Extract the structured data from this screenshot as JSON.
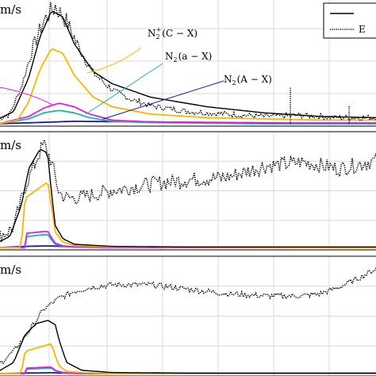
{
  "figure": {
    "kind": "stacked time-series emission panels (cropped)"
  },
  "legend": {
    "placement": "top-right",
    "entries": [
      {
        "label": "",
        "style": "solid"
      },
      {
        "label": "E",
        "style": "dotted"
      }
    ]
  },
  "colors": {
    "total": "#000000",
    "experiment": "#000000",
    "C_X": "#f5b800",
    "a_X": "#20b2aa",
    "A_X": "#1a1a9c",
    "magenta": "#e020e0",
    "grid": "#d9d9d9"
  },
  "chart_data": [
    {
      "type": "line",
      "panel_label": "m/s",
      "grid": true,
      "xlim": [
        0,
        1
      ],
      "ylim": [
        0,
        1
      ],
      "annotations": [
        {
          "text_base": "N",
          "sub": "2",
          "sup": "+",
          "rest": "(C − X)",
          "series": "C-X"
        },
        {
          "text_base": "N",
          "sub": "2",
          "sup": "",
          "rest": "(a − X)",
          "series": "a-X"
        },
        {
          "text_base": "N",
          "sub": "2",
          "sup": "",
          "rest": "(A − X)",
          "series": "A-X"
        }
      ],
      "series": [
        {
          "key": "total",
          "x": [
            0,
            0.04,
            0.08,
            0.11,
            0.14,
            0.17,
            0.2,
            0.25,
            0.3,
            0.4,
            0.55,
            0.7,
            0.85,
            1.0
          ],
          "values": [
            0.04,
            0.1,
            0.38,
            0.72,
            0.93,
            0.88,
            0.66,
            0.43,
            0.33,
            0.22,
            0.14,
            0.09,
            0.06,
            0.05
          ]
        },
        {
          "key": "experiment",
          "x": [
            0,
            0.03,
            0.06,
            0.09,
            0.12,
            0.15,
            0.18,
            0.21,
            0.25,
            0.3,
            0.35,
            0.4,
            0.5,
            0.6,
            0.7,
            0.8,
            0.9,
            1.0
          ],
          "values": [
            0.04,
            0.08,
            0.3,
            0.62,
            0.85,
            0.97,
            0.84,
            0.64,
            0.42,
            0.28,
            0.2,
            0.15,
            0.1,
            0.08,
            0.06,
            0.07,
            0.05,
            0.05
          ]
        },
        {
          "key": "C_X",
          "name": "N2+(C − X)",
          "x": [
            0,
            0.05,
            0.08,
            0.11,
            0.14,
            0.17,
            0.2,
            0.25,
            0.3,
            0.4,
            0.55,
            0.7,
            0.85,
            1.0
          ],
          "values": [
            0.0,
            0.03,
            0.18,
            0.45,
            0.62,
            0.58,
            0.4,
            0.22,
            0.14,
            0.08,
            0.05,
            0.04,
            0.03,
            0.03
          ]
        },
        {
          "key": "magenta",
          "x": [
            0,
            0.08,
            0.12,
            0.16,
            0.2,
            0.24,
            0.3,
            0.4,
            0.55,
            0.7,
            1.0
          ],
          "values": [
            0.0,
            0.06,
            0.13,
            0.17,
            0.14,
            0.08,
            0.03,
            0.015,
            0.01,
            0.005,
            0.005
          ]
        },
        {
          "key": "a_X",
          "name": "N2(a − X)",
          "x": [
            0,
            0.08,
            0.12,
            0.16,
            0.2,
            0.24,
            0.3,
            0.4,
            0.55,
            0.7,
            1.0
          ],
          "values": [
            0.0,
            0.04,
            0.09,
            0.11,
            0.09,
            0.05,
            0.02,
            0.01,
            0.005,
            0.0,
            0.0
          ]
        },
        {
          "key": "A_X",
          "name": "N2(A − X)",
          "x": [
            0,
            0.1,
            0.2,
            0.4,
            0.6,
            0.8,
            1.0
          ],
          "values": [
            0.0,
            0.01,
            0.02,
            0.015,
            0.01,
            0.005,
            0.005
          ]
        }
      ],
      "spikes": [
        {
          "x": 0.77,
          "y": 0.3
        },
        {
          "x": 0.925,
          "y": 0.15
        }
      ]
    },
    {
      "type": "line",
      "panel_label": "m/s",
      "grid": true,
      "xlim": [
        0,
        1
      ],
      "ylim": [
        0,
        1
      ],
      "series": [
        {
          "key": "total",
          "x": [
            0,
            0.03,
            0.06,
            0.08,
            0.11,
            0.13,
            0.14,
            0.15,
            0.17,
            0.2,
            0.3,
            0.5,
            0.7,
            1.0
          ],
          "values": [
            0.05,
            0.1,
            0.38,
            0.72,
            0.9,
            0.86,
            0.5,
            0.2,
            0.08,
            0.03,
            0.01,
            0.005,
            0.005,
            0.005
          ]
        },
        {
          "key": "experiment",
          "x": [
            0,
            0.04,
            0.07,
            0.1,
            0.12,
            0.14,
            0.16,
            0.18,
            0.22,
            0.3,
            0.4,
            0.5,
            0.6,
            0.7,
            0.8,
            0.9,
            1.0
          ],
          "values": [
            0.1,
            0.18,
            0.55,
            0.8,
            0.95,
            0.78,
            0.5,
            0.45,
            0.46,
            0.52,
            0.58,
            0.62,
            0.64,
            0.74,
            0.78,
            0.72,
            0.8
          ]
        },
        {
          "key": "C_X",
          "x": [
            0,
            0.06,
            0.07,
            0.13,
            0.14,
            0.15,
            0.17,
            0.2,
            0.3,
            1.0
          ],
          "values": [
            0.0,
            0.0,
            0.45,
            0.6,
            0.38,
            0.14,
            0.05,
            0.02,
            0.005,
            0.0
          ]
        },
        {
          "key": "magenta",
          "x": [
            0,
            0.07,
            0.075,
            0.13,
            0.14,
            0.15,
            0.17,
            0.2,
            0.3,
            1.0
          ],
          "values": [
            0.0,
            0.0,
            0.13,
            0.15,
            0.09,
            0.04,
            0.015,
            0.005,
            0.0,
            0.0
          ]
        },
        {
          "key": "a_X",
          "x": [
            0,
            0.07,
            0.075,
            0.13,
            0.14,
            0.15,
            0.17,
            0.2,
            0.3,
            1.0
          ],
          "values": [
            0.0,
            0.0,
            0.1,
            0.12,
            0.07,
            0.03,
            0.01,
            0.005,
            0.0,
            0.0
          ]
        },
        {
          "key": "A_X",
          "x": [
            0,
            0.07,
            0.13,
            0.2,
            1.0
          ],
          "values": [
            0.0,
            0.01,
            0.015,
            0.005,
            0.0
          ]
        }
      ],
      "spikes": []
    },
    {
      "type": "line",
      "panel_label": "m/s",
      "grid": true,
      "xlim": [
        0,
        1
      ],
      "ylim": [
        0,
        1
      ],
      "series": [
        {
          "key": "total",
          "x": [
            0,
            0.04,
            0.07,
            0.1,
            0.13,
            0.15,
            0.16,
            0.18,
            0.22,
            0.3,
            0.5,
            1.0
          ],
          "values": [
            0.02,
            0.1,
            0.35,
            0.45,
            0.48,
            0.44,
            0.3,
            0.1,
            0.03,
            0.01,
            0.005,
            0.005
          ]
        },
        {
          "key": "experiment",
          "x": [
            0,
            0.04,
            0.08,
            0.12,
            0.16,
            0.2,
            0.25,
            0.3,
            0.4,
            0.5,
            0.6,
            0.7,
            0.8,
            0.85,
            0.9,
            0.95,
            1.0
          ],
          "values": [
            0.08,
            0.2,
            0.38,
            0.58,
            0.68,
            0.74,
            0.78,
            0.8,
            0.8,
            0.76,
            0.72,
            0.7,
            0.7,
            0.72,
            0.78,
            0.86,
            0.95
          ]
        },
        {
          "key": "C_X",
          "x": [
            0,
            0.06,
            0.07,
            0.14,
            0.15,
            0.16,
            0.18,
            0.22,
            0.3,
            1.0
          ],
          "values": [
            0.0,
            0.0,
            0.2,
            0.27,
            0.16,
            0.07,
            0.02,
            0.01,
            0.0,
            0.0
          ]
        },
        {
          "key": "magenta",
          "x": [
            0,
            0.07,
            0.075,
            0.14,
            0.15,
            0.17,
            0.22,
            1.0
          ],
          "values": [
            0.0,
            0.0,
            0.05,
            0.06,
            0.03,
            0.01,
            0.0,
            0.0
          ]
        },
        {
          "key": "a_X",
          "x": [
            0,
            0.07,
            0.075,
            0.14,
            0.15,
            0.17,
            0.22,
            1.0
          ],
          "values": [
            0.0,
            0.0,
            0.04,
            0.05,
            0.025,
            0.008,
            0.0,
            0.0
          ]
        },
        {
          "key": "A_X",
          "x": [
            0,
            0.07,
            0.14,
            0.2,
            1.0
          ],
          "values": [
            0.0,
            0.005,
            0.008,
            0.002,
            0.0
          ]
        }
      ],
      "spikes": []
    }
  ]
}
